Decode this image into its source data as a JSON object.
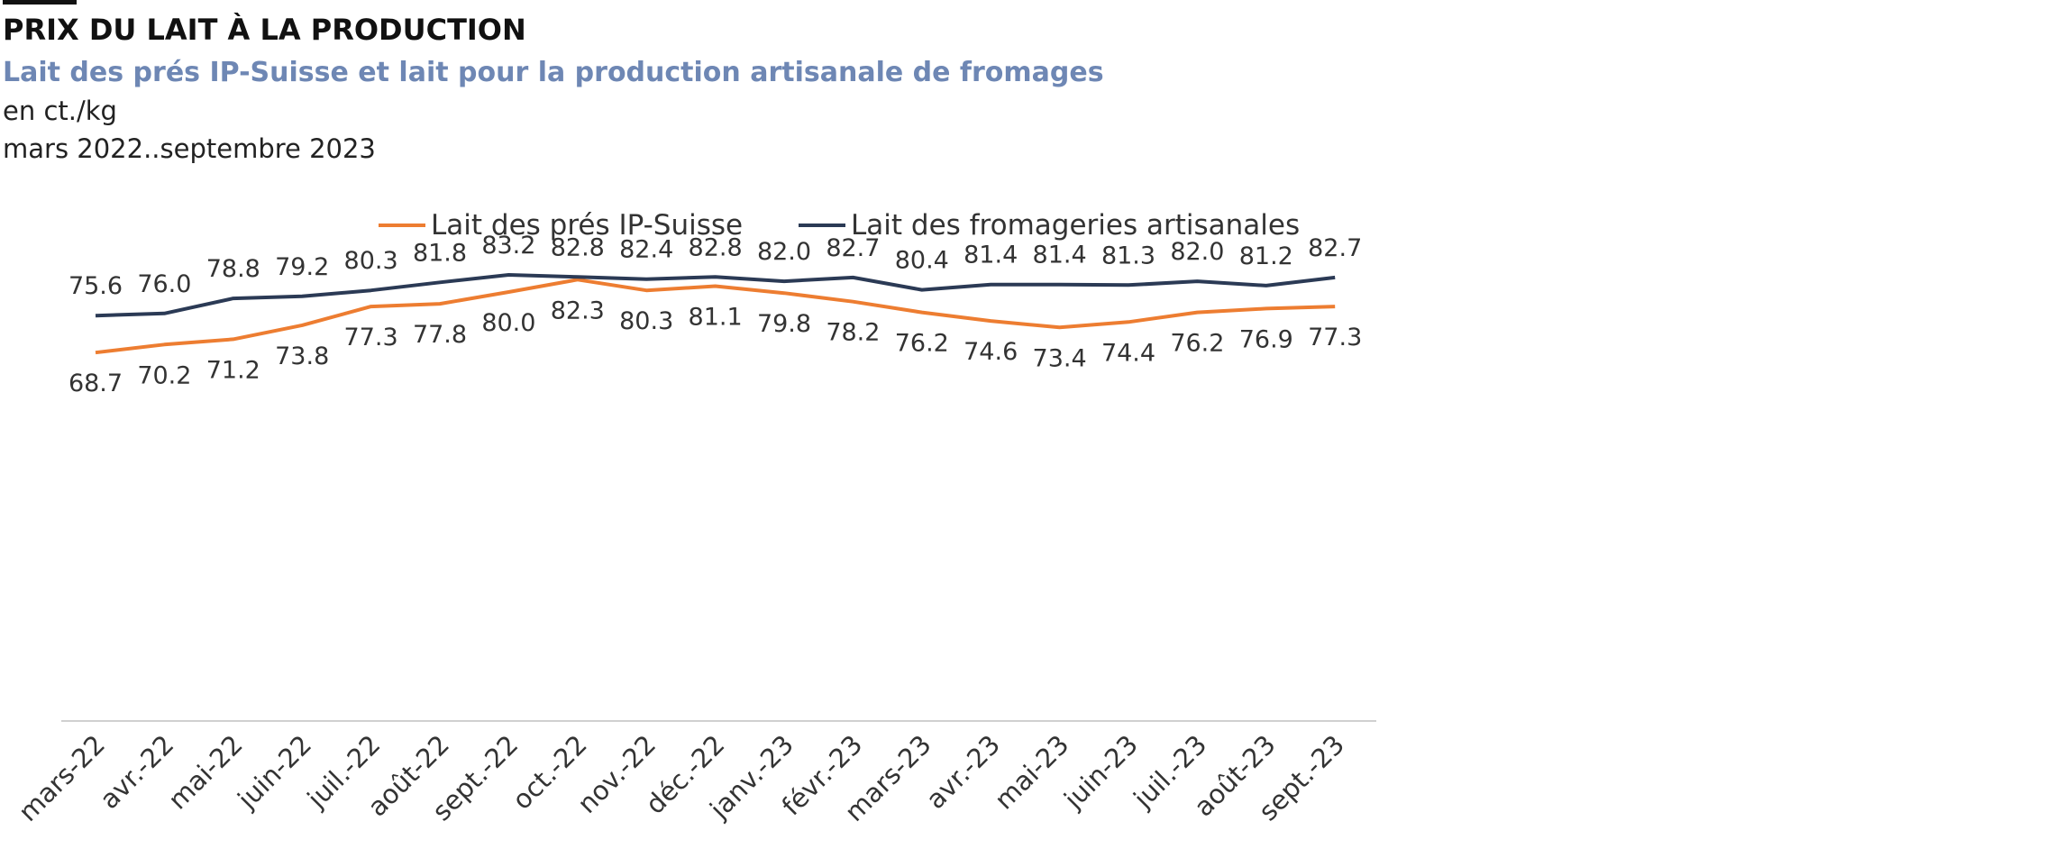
{
  "header": {
    "title": "PRIX DU LAIT À LA PRODUCTION",
    "subtitle": "Lait des prés IP-Suisse et lait pour la production artisanale de fromages",
    "unit": "en ct./kg",
    "period": "mars 2022..septembre 2023"
  },
  "colors": {
    "ip_suisse": "#ed7d31",
    "fromageries": "#2b3a55",
    "axis": "#d0d0d0",
    "subtitle": "#6e87b4"
  },
  "chart_data": {
    "type": "line",
    "title": "PRIX DU LAIT À LA PRODUCTION",
    "subtitle": "Lait des prés IP-Suisse et lait pour la production artisanale de fromages",
    "ylabel": "",
    "xlabel": "",
    "ylim": [
      0,
      100
    ],
    "grid": false,
    "legend_position": "top-center",
    "categories": [
      "mars-22",
      "avr.-22",
      "mai-22",
      "juin-22",
      "juil.-22",
      "août-22",
      "sept.-22",
      "oct.-22",
      "nov.-22",
      "déc.-22",
      "janv.-23",
      "févr.-23",
      "mars-23",
      "avr.-23",
      "mai-23",
      "juin-23",
      "juil.-23",
      "août-23",
      "sept.-23"
    ],
    "series": [
      {
        "name": "Lait des prés IP-Suisse",
        "color": "#ed7d31",
        "label_position": "below",
        "values": [
          68.7,
          70.2,
          71.2,
          73.8,
          77.3,
          77.8,
          80.0,
          82.3,
          80.3,
          81.1,
          79.8,
          78.2,
          76.2,
          74.6,
          73.4,
          74.4,
          76.2,
          76.9,
          77.3
        ]
      },
      {
        "name": "Lait des fromageries artisanales",
        "color": "#2b3a55",
        "label_position": "above",
        "values": [
          75.6,
          76.0,
          78.8,
          79.2,
          80.3,
          81.8,
          83.2,
          82.8,
          82.4,
          82.8,
          82.0,
          82.7,
          80.4,
          81.4,
          81.4,
          81.3,
          82.0,
          81.2,
          82.7
        ]
      }
    ]
  }
}
